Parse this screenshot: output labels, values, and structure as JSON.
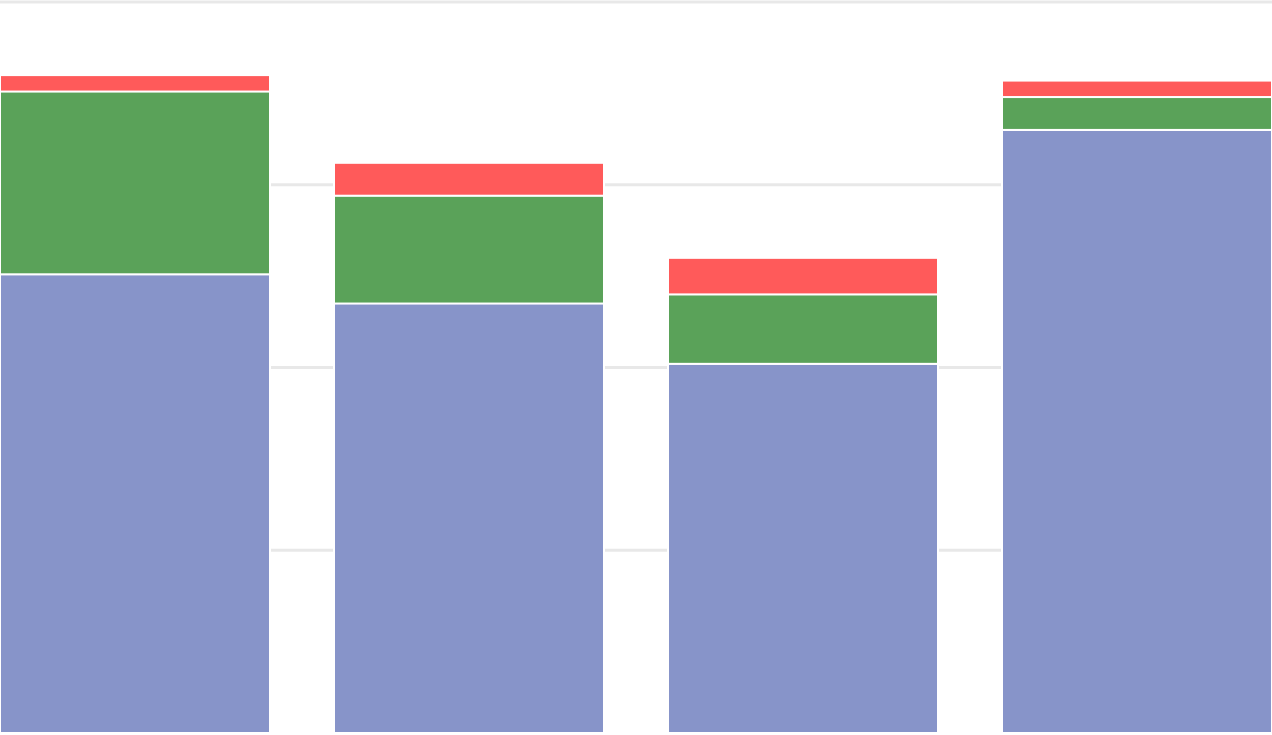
{
  "chart_data": {
    "type": "stacked-bar",
    "categories": [
      null,
      null,
      null,
      null
    ],
    "series": [
      {
        "color": "#8794c9",
        "values": [
          2.51,
          2.35,
          2.02,
          3.3
        ]
      },
      {
        "color": "#5aa259",
        "values": [
          1.0,
          0.59,
          0.38,
          0.18
        ]
      },
      {
        "color": "#ff5a5a",
        "values": [
          0.09,
          0.18,
          0.2,
          0.09
        ]
      }
    ],
    "ylim": [
      0,
      4
    ],
    "yticks": [
      1,
      2,
      3,
      4
    ],
    "grid": true
  }
}
